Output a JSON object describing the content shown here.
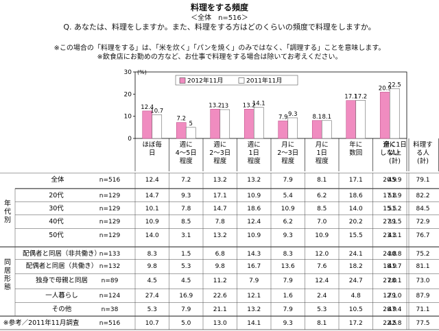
{
  "title": "料理をする頻度",
  "subtitle": "＜全体　n=516＞",
  "question": "Q. あなたは、料理をしますか。また、料理をする方はどのくらいの頻度で料理をしますか。",
  "notes": [
    "※この場合の「料理をする」は、「米を炊く」「パンを焼く」のみではなく、「調理する」ことを意味します。",
    "※飲食店にお勤めの方など、お仕事で料理をする場合は除いてお考えください。"
  ],
  "chart_data": {
    "type": "bar",
    "categories": [
      [
        "ほぼ毎",
        "日"
      ],
      [
        "週に",
        "4～5日",
        "程度"
      ],
      [
        "週に",
        "2～3日",
        "程度"
      ],
      [
        "週に",
        "1日",
        "程度"
      ],
      [
        "月に",
        "2～3日",
        "程度"
      ],
      [
        "月に",
        "1日",
        "程度"
      ],
      [
        "年に",
        "数回"
      ],
      [
        "全く",
        "しない"
      ]
    ],
    "series": [
      {
        "name": "2012年11月",
        "color": "#f08cc0",
        "values": [
          12.4,
          7.2,
          13.2,
          13.2,
          7.9,
          8.1,
          17.1,
          20.9
        ]
      },
      {
        "name": "2011年11月",
        "color": "#ffffff",
        "values": [
          10.7,
          5.0,
          13.0,
          14.1,
          9.3,
          8.1,
          17.2,
          22.5
        ]
      }
    ],
    "ylim": [
      0,
      30
    ],
    "yticks": [
      0,
      10,
      20,
      30
    ],
    "ylabel": "(%)",
    "legend_position": "top"
  },
  "table": {
    "summary_headers": [
      [
        "週に1日",
        "以上",
        "(計)"
      ],
      [
        "料理す",
        "る人",
        "(計)"
      ]
    ],
    "group_labels": [
      [
        "年",
        "代",
        "別"
      ],
      [
        "同",
        "居",
        "形",
        "態"
      ]
    ],
    "rows": [
      {
        "label": "全体",
        "n": "n=516",
        "values": [
          "12.4",
          "7.2",
          "13.2",
          "13.2",
          "7.9",
          "8.1",
          "17.1",
          "20.9",
          "45.9",
          "79.1"
        ]
      },
      {
        "label": "20代",
        "n": "n=129",
        "values": [
          "14.7",
          "9.3",
          "17.1",
          "10.9",
          "5.4",
          "6.2",
          "18.6",
          "17.8",
          "51.9",
          "82.2"
        ]
      },
      {
        "label": "30代",
        "n": "n=129",
        "values": [
          "10.1",
          "7.8",
          "14.7",
          "18.6",
          "10.9",
          "8.5",
          "14.0",
          "15.5",
          "51.2",
          "84.5"
        ]
      },
      {
        "label": "40代",
        "n": "n=129",
        "values": [
          "10.9",
          "8.5",
          "7.8",
          "12.4",
          "6.2",
          "7.0",
          "20.2",
          "27.1",
          "39.5",
          "72.9"
        ]
      },
      {
        "label": "50代",
        "n": "n=129",
        "values": [
          "14.0",
          "3.1",
          "13.2",
          "10.9",
          "9.3",
          "10.9",
          "15.5",
          "23.3",
          "41.1",
          "76.7"
        ]
      },
      {
        "label": "配偶者と同居（非共働き）",
        "n": "n=133",
        "values": [
          "8.3",
          "1.5",
          "6.8",
          "14.3",
          "8.3",
          "12.0",
          "24.1",
          "24.8",
          "30.8",
          "75.2"
        ]
      },
      {
        "label": "配偶者と同居（共働き）",
        "n": "n=132",
        "values": [
          "9.8",
          "5.3",
          "9.8",
          "16.7",
          "13.6",
          "7.6",
          "18.2",
          "18.9",
          "41.7",
          "81.1"
        ]
      },
      {
        "label": "独身で母親と同居",
        "n": "n=89",
        "values": [
          "4.5",
          "4.5",
          "11.2",
          "7.9",
          "7.9",
          "12.4",
          "24.7",
          "27.0",
          "28.1",
          "73.0"
        ]
      },
      {
        "label": "一人暮らし",
        "n": "n=124",
        "values": [
          "27.4",
          "16.9",
          "22.6",
          "12.1",
          "1.6",
          "2.4",
          "4.8",
          "12.1",
          "79.0",
          "87.9"
        ]
      },
      {
        "label": "その他",
        "n": "n=38",
        "values": [
          "5.3",
          "7.9",
          "21.1",
          "13.2",
          "7.9",
          "5.3",
          "10.5",
          "28.9",
          "47.4",
          "71.1"
        ]
      },
      {
        "label": "※参考／2011年11月調査",
        "n": "n=516",
        "values": [
          "10.7",
          "5.0",
          "13.0",
          "14.1",
          "9.3",
          "8.1",
          "17.2",
          "22.5",
          "42.8",
          "77.5"
        ]
      }
    ]
  }
}
